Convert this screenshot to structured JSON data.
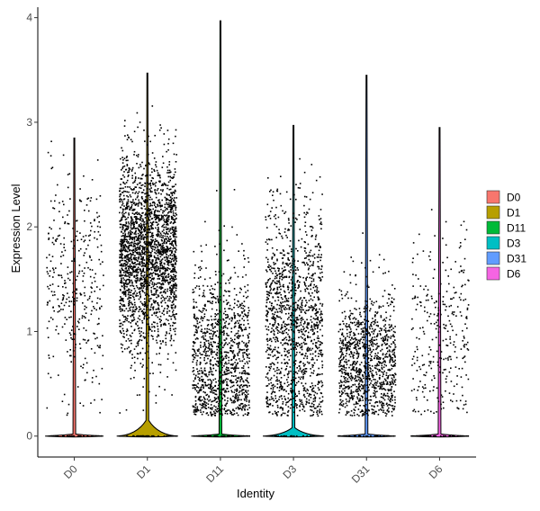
{
  "chart_data": {
    "type": "violin",
    "xlabel": "Identity",
    "ylabel": "Expression Level",
    "ylim": [
      -0.2,
      4.1
    ],
    "yticks": [
      0,
      1,
      2,
      3,
      4
    ],
    "categories": [
      "D0",
      "D1",
      "D11",
      "D3",
      "D31",
      "D6"
    ],
    "legend": {
      "position": "right",
      "entries": [
        "D0",
        "D1",
        "D11",
        "D3",
        "D31",
        "D6"
      ]
    },
    "colors": {
      "D0": "#F8766D",
      "D1": "#B79F00",
      "D11": "#00BA38",
      "D3": "#00BFC4",
      "D31": "#619CFF",
      "D6": "#F564E3"
    },
    "violins": [
      {
        "name": "D0",
        "max": 2.85,
        "bulge_width": 0.4,
        "bulge_height": 0.02,
        "nonzero_points": 360,
        "nonzero_mean": 1.45,
        "nonzero_spread": 0.55
      },
      {
        "name": "D1",
        "max": 3.47,
        "bulge_width": 0.42,
        "bulge_height": 0.15,
        "nonzero_points": 2400,
        "nonzero_mean": 1.75,
        "nonzero_spread": 0.45
      },
      {
        "name": "D11",
        "max": 3.97,
        "bulge_width": 0.4,
        "bulge_height": 0.02,
        "nonzero_points": 1150,
        "nonzero_mean": 0.75,
        "nonzero_spread": 0.45
      },
      {
        "name": "D3",
        "max": 2.97,
        "bulge_width": 0.42,
        "bulge_height": 0.08,
        "nonzero_points": 1350,
        "nonzero_mean": 1.05,
        "nonzero_spread": 0.55
      },
      {
        "name": "D31",
        "max": 3.45,
        "bulge_width": 0.4,
        "bulge_height": 0.02,
        "nonzero_points": 1100,
        "nonzero_mean": 0.7,
        "nonzero_spread": 0.35
      },
      {
        "name": "D6",
        "max": 2.95,
        "bulge_width": 0.4,
        "bulge_height": 0.02,
        "nonzero_points": 300,
        "nonzero_mean": 1.0,
        "nonzero_spread": 0.5
      }
    ],
    "grid": false
  }
}
